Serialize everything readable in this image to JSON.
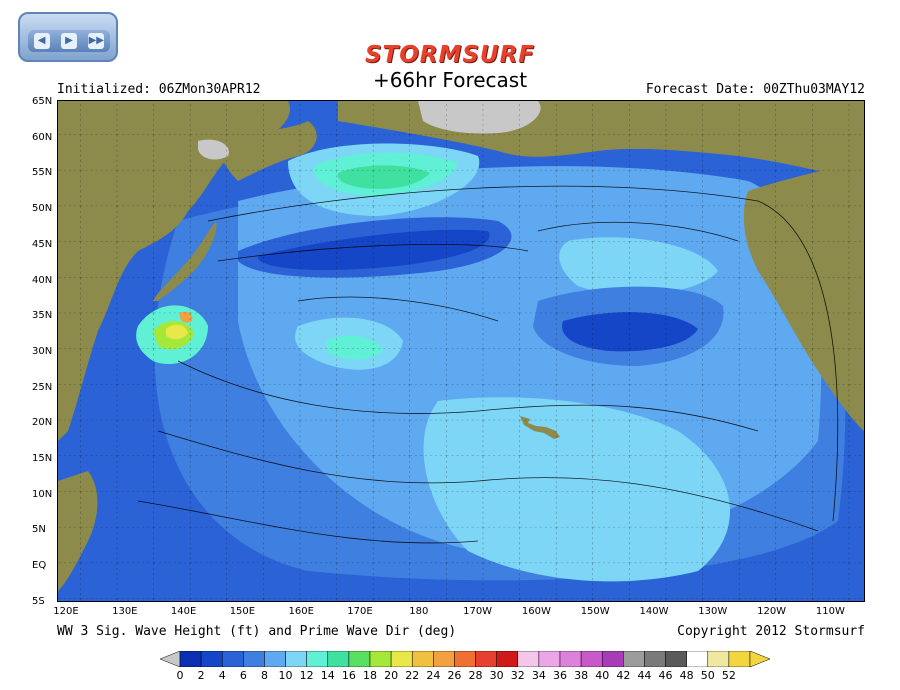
{
  "nav": {
    "buttons": [
      {
        "icon": "rewind-icon",
        "glyph": "◀"
      },
      {
        "icon": "play-icon",
        "glyph": "▶"
      },
      {
        "icon": "fast-forward-icon",
        "glyph": "▶▶"
      }
    ]
  },
  "header": {
    "brand": "STORMSURF",
    "title": "+66hr Forecast",
    "initialized": "Initialized: 06ZMon30APR12",
    "forecast_date": "Forecast Date: 00ZThu03MAY12"
  },
  "footer": {
    "subtitle": "WW 3 Sig. Wave Height (ft) and Prime Wave Dir (deg)",
    "copyright": "Copyright 2012 Stormsurf"
  },
  "map": {
    "lat_labels": [
      "65N",
      "60N",
      "55N",
      "50N",
      "45N",
      "40N",
      "35N",
      "30N",
      "25N",
      "20N",
      "15N",
      "10N",
      "5N",
      "EQ",
      "5S"
    ],
    "lon_labels": [
      "120E",
      "130E",
      "140E",
      "150E",
      "160E",
      "170E",
      "180",
      "170W",
      "160W",
      "150W",
      "140W",
      "130W",
      "120W",
      "110W"
    ],
    "colors": {
      "land": "#8c8b4c",
      "ice": "#c8c8c8",
      "ocean_low": "#2b63d6",
      "ocean_mid": "#5fa9f0",
      "ocean_high": "#8fe6f2",
      "peak_green": "#4ae27a",
      "peak_yellow": "#e8e84a",
      "peak_orange": "#f2a040"
    }
  },
  "legend": {
    "values": [
      "0",
      "2",
      "4",
      "6",
      "8",
      "10",
      "12",
      "14",
      "16",
      "18",
      "20",
      "22",
      "24",
      "26",
      "28",
      "30",
      "32",
      "34",
      "36",
      "38",
      "40",
      "42",
      "44",
      "46",
      "48",
      "50",
      "52"
    ],
    "colors": [
      "#0a2fb0",
      "#1646c8",
      "#2b63d6",
      "#3f7fe0",
      "#5fa9f0",
      "#7dd6f5",
      "#5ff0d6",
      "#40e0a0",
      "#5ae060",
      "#a6e83a",
      "#e8e84a",
      "#f0c040",
      "#f2a040",
      "#ef7030",
      "#e84030",
      "#d01818",
      "#f3c6ea",
      "#eaa6e6",
      "#dc82dc",
      "#c85ac8",
      "#a83cb8",
      "#9c9c9c",
      "#7a7a7a",
      "#5a5a5a",
      "#ffffff",
      "#f0e8a0",
      "#f2d640"
    ]
  }
}
